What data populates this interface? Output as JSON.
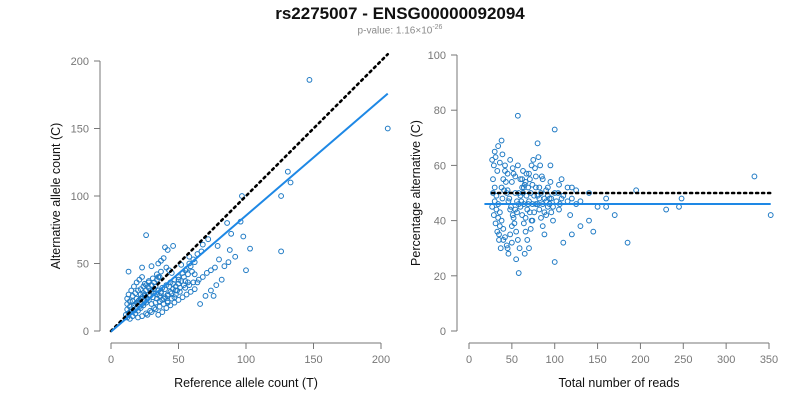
{
  "title": "rs2275007 - ENSG00000092094",
  "subtitle": {
    "prefix": "p-value: 1.16×10",
    "exponent": "-26"
  },
  "colors": {
    "points": "#1f7ac4",
    "fit_line": "#1e88e5",
    "reference_line": "#000000",
    "axis": "#777777"
  },
  "chart_data": [
    {
      "type": "scatter",
      "title": "",
      "xlabel": "Reference allele count (T)",
      "ylabel": "Alternative allele count (C)",
      "xlim": [
        0,
        200
      ],
      "ylim": [
        0,
        200
      ],
      "xticks": [
        0,
        50,
        100,
        150,
        200
      ],
      "yticks": [
        0,
        50,
        100,
        150,
        200
      ],
      "grid": false,
      "reference_line": {
        "style": "dotted",
        "slope": 1,
        "intercept": 0,
        "x": [
          0,
          205
        ]
      },
      "fit_line": {
        "style": "solid",
        "slope": 0.86,
        "intercept": -0.5,
        "x": [
          0,
          205
        ]
      },
      "points": [
        [
          147,
          186
        ],
        [
          205,
          150
        ],
        [
          131,
          118
        ],
        [
          133,
          110
        ],
        [
          97,
          100
        ],
        [
          126,
          100
        ],
        [
          126,
          59
        ],
        [
          103,
          61
        ],
        [
          87,
          51
        ],
        [
          98,
          70
        ],
        [
          89,
          72
        ],
        [
          86,
          80
        ],
        [
          96,
          81
        ],
        [
          76,
          26
        ],
        [
          79,
          63
        ],
        [
          68,
          64
        ],
        [
          72,
          68
        ],
        [
          46,
          63
        ],
        [
          40,
          62
        ],
        [
          42,
          60
        ],
        [
          26,
          71
        ],
        [
          13,
          44
        ],
        [
          23,
          47
        ],
        [
          30,
          48
        ],
        [
          35,
          40
        ],
        [
          45,
          43
        ],
        [
          52,
          49
        ],
        [
          58,
          50
        ],
        [
          62,
          42
        ],
        [
          64,
          36
        ],
        [
          55,
          37
        ],
        [
          49,
          30
        ],
        [
          47,
          25
        ],
        [
          42,
          22
        ],
        [
          37,
          28
        ],
        [
          33,
          33
        ],
        [
          29,
          30
        ],
        [
          25,
          26
        ],
        [
          22,
          27
        ],
        [
          19,
          24
        ],
        [
          16,
          22
        ],
        [
          14,
          18
        ],
        [
          12,
          16
        ],
        [
          11,
          12
        ],
        [
          12,
          10
        ],
        [
          14,
          9
        ],
        [
          16,
          11
        ],
        [
          18,
          13
        ],
        [
          20,
          15
        ],
        [
          22,
          17
        ],
        [
          24,
          19
        ],
        [
          26,
          21
        ],
        [
          28,
          23
        ],
        [
          31,
          25
        ],
        [
          34,
          27
        ],
        [
          37,
          29
        ],
        [
          40,
          31
        ],
        [
          43,
          33
        ],
        [
          46,
          35
        ],
        [
          50,
          38
        ],
        [
          54,
          40
        ],
        [
          57,
          42
        ],
        [
          60,
          44
        ],
        [
          27,
          12
        ],
        [
          30,
          14
        ],
        [
          33,
          16
        ],
        [
          36,
          18
        ],
        [
          39,
          20
        ],
        [
          42,
          21
        ],
        [
          45,
          24
        ],
        [
          48,
          27
        ],
        [
          51,
          29
        ],
        [
          55,
          32
        ],
        [
          58,
          34
        ],
        [
          61,
          36
        ],
        [
          65,
          38
        ],
        [
          68,
          40
        ],
        [
          71,
          43
        ],
        [
          74,
          45
        ],
        [
          77,
          47
        ],
        [
          15,
          30
        ],
        [
          17,
          33
        ],
        [
          19,
          36
        ],
        [
          21,
          38
        ],
        [
          23,
          40
        ],
        [
          25,
          35
        ],
        [
          28,
          37
        ],
        [
          31,
          39
        ],
        [
          34,
          42
        ],
        [
          37,
          44
        ],
        [
          13,
          13
        ],
        [
          15,
          14
        ],
        [
          17,
          15
        ],
        [
          19,
          17
        ],
        [
          21,
          18
        ],
        [
          23,
          20
        ],
        [
          25,
          22
        ],
        [
          27,
          24
        ],
        [
          29,
          26
        ],
        [
          32,
          28
        ],
        [
          35,
          30
        ],
        [
          38,
          32
        ],
        [
          41,
          34
        ],
        [
          44,
          36
        ],
        [
          47,
          38
        ],
        [
          50,
          40
        ],
        [
          53,
          43
        ],
        [
          56,
          46
        ],
        [
          59,
          48
        ],
        [
          62,
          51
        ],
        [
          14,
          22
        ],
        [
          16,
          26
        ],
        [
          18,
          28
        ],
        [
          20,
          30
        ],
        [
          22,
          31
        ],
        [
          24,
          33
        ],
        [
          26,
          34
        ],
        [
          28,
          36
        ],
        [
          30,
          29
        ],
        [
          32,
          31
        ],
        [
          34,
          24
        ],
        [
          36,
          26
        ],
        [
          38,
          23
        ],
        [
          40,
          25
        ],
        [
          42,
          27
        ],
        [
          44,
          29
        ],
        [
          46,
          31
        ],
        [
          48,
          33
        ],
        [
          50,
          35
        ],
        [
          52,
          37
        ],
        [
          35,
          12
        ],
        [
          38,
          14
        ],
        [
          41,
          17
        ],
        [
          44,
          19
        ],
        [
          47,
          21
        ],
        [
          50,
          23
        ],
        [
          53,
          25
        ],
        [
          56,
          27
        ],
        [
          59,
          29
        ],
        [
          62,
          31
        ],
        [
          20,
          10
        ],
        [
          23,
          11
        ],
        [
          26,
          13
        ],
        [
          29,
          15
        ],
        [
          32,
          17
        ],
        [
          66,
          20
        ],
        [
          70,
          26
        ],
        [
          74,
          30
        ],
        [
          78,
          34
        ],
        [
          82,
          38
        ],
        [
          18,
          20
        ],
        [
          20,
          22
        ],
        [
          22,
          24
        ],
        [
          24,
          28
        ],
        [
          26,
          30
        ],
        [
          28,
          32
        ],
        [
          30,
          34
        ],
        [
          32,
          36
        ],
        [
          34,
          38
        ],
        [
          36,
          40
        ],
        [
          12,
          20
        ],
        [
          12,
          24
        ],
        [
          13,
          27
        ],
        [
          14,
          14
        ],
        [
          15,
          16
        ],
        [
          17,
          19
        ],
        [
          19,
          21
        ],
        [
          21,
          23
        ],
        [
          23,
          25
        ],
        [
          25,
          27
        ],
        [
          55,
          45
        ],
        [
          58,
          55
        ],
        [
          61,
          53
        ],
        [
          64,
          57
        ],
        [
          67,
          59
        ],
        [
          35,
          50
        ],
        [
          37,
          52
        ],
        [
          39,
          54
        ],
        [
          41,
          47
        ],
        [
          43,
          45
        ],
        [
          100,
          45
        ],
        [
          88,
          60
        ],
        [
          92,
          55
        ],
        [
          84,
          48
        ],
        [
          80,
          53
        ],
        [
          30,
          20
        ],
        [
          33,
          21
        ],
        [
          36,
          22
        ],
        [
          39,
          24
        ],
        [
          42,
          26
        ],
        [
          45,
          28
        ],
        [
          48,
          30
        ],
        [
          51,
          32
        ],
        [
          54,
          34
        ],
        [
          57,
          36
        ]
      ]
    },
    {
      "type": "scatter",
      "title": "",
      "xlabel": "Total number of reads",
      "ylabel": "Percentage alternative (C)",
      "xlim": [
        0,
        350
      ],
      "ylim": [
        0,
        100
      ],
      "xticks": [
        0,
        50,
        100,
        150,
        200,
        250,
        300,
        350
      ],
      "yticks": [
        0,
        20,
        40,
        60,
        80,
        100
      ],
      "grid": false,
      "reference_line": {
        "style": "dotted",
        "y": 50,
        "x": [
          27,
          352
        ]
      },
      "fit_line": {
        "style": "solid",
        "y": 46,
        "x": [
          18,
          352
        ]
      },
      "points": [
        [
          57,
          78
        ],
        [
          100,
          73
        ],
        [
          80,
          68
        ],
        [
          38,
          69
        ],
        [
          34,
          67
        ],
        [
          30,
          65
        ],
        [
          27,
          62
        ],
        [
          29,
          60
        ],
        [
          31,
          63
        ],
        [
          33,
          58
        ],
        [
          36,
          61
        ],
        [
          39,
          64
        ],
        [
          42,
          60
        ],
        [
          45,
          57
        ],
        [
          48,
          62
        ],
        [
          51,
          59
        ],
        [
          54,
          56
        ],
        [
          57,
          60
        ],
        [
          60,
          55
        ],
        [
          63,
          58
        ],
        [
          66,
          54
        ],
        [
          70,
          57
        ],
        [
          74,
          53
        ],
        [
          78,
          56
        ],
        [
          82,
          52
        ],
        [
          86,
          55
        ],
        [
          90,
          51
        ],
        [
          95,
          54
        ],
        [
          100,
          50
        ],
        [
          105,
          53
        ],
        [
          110,
          49
        ],
        [
          115,
          52
        ],
        [
          120,
          48
        ],
        [
          125,
          51
        ],
        [
          130,
          47
        ],
        [
          140,
          50
        ],
        [
          150,
          45
        ],
        [
          160,
          48
        ],
        [
          170,
          42
        ],
        [
          28,
          55
        ],
        [
          30,
          52
        ],
        [
          32,
          49
        ],
        [
          34,
          46
        ],
        [
          36,
          43
        ],
        [
          38,
          40
        ],
        [
          40,
          37
        ],
        [
          42,
          34
        ],
        [
          44,
          31
        ],
        [
          46,
          28
        ],
        [
          48,
          35
        ],
        [
          50,
          38
        ],
        [
          52,
          41
        ],
        [
          54,
          44
        ],
        [
          56,
          47
        ],
        [
          58,
          50
        ],
        [
          60,
          45
        ],
        [
          62,
          42
        ],
        [
          64,
          39
        ],
        [
          66,
          36
        ],
        [
          68,
          33
        ],
        [
          70,
          30
        ],
        [
          72,
          37
        ],
        [
          74,
          40
        ],
        [
          76,
          43
        ],
        [
          78,
          46
        ],
        [
          80,
          49
        ],
        [
          82,
          44
        ],
        [
          84,
          41
        ],
        [
          86,
          38
        ],
        [
          88,
          35
        ],
        [
          90,
          42
        ],
        [
          92,
          45
        ],
        [
          94,
          48
        ],
        [
          96,
          43
        ],
        [
          98,
          40
        ],
        [
          27,
          45
        ],
        [
          29,
          42
        ],
        [
          31,
          39
        ],
        [
          33,
          36
        ],
        [
          35,
          33
        ],
        [
          37,
          30
        ],
        [
          39,
          48
        ],
        [
          41,
          51
        ],
        [
          43,
          54
        ],
        [
          45,
          51
        ],
        [
          47,
          48
        ],
        [
          49,
          45
        ],
        [
          51,
          42
        ],
        [
          53,
          39
        ],
        [
          55,
          36
        ],
        [
          57,
          33
        ],
        [
          59,
          30
        ],
        [
          61,
          47
        ],
        [
          63,
          50
        ],
        [
          65,
          53
        ],
        [
          67,
          49
        ],
        [
          69,
          46
        ],
        [
          71,
          43
        ],
        [
          73,
          40
        ],
        [
          58,
          21
        ],
        [
          55,
          26
        ],
        [
          65,
          28
        ],
        [
          45,
          30
        ],
        [
          50,
          32
        ],
        [
          40,
          33
        ],
        [
          35,
          35
        ],
        [
          100,
          25
        ],
        [
          110,
          32
        ],
        [
          120,
          35
        ],
        [
          130,
          38
        ],
        [
          140,
          40
        ],
        [
          145,
          36
        ],
        [
          160,
          45
        ],
        [
          185,
          32
        ],
        [
          195,
          51
        ],
        [
          230,
          44
        ],
        [
          245,
          45
        ],
        [
          248,
          48
        ],
        [
          333,
          56
        ],
        [
          352,
          42
        ],
        [
          120,
          52
        ],
        [
          125,
          46
        ],
        [
          105,
          44
        ],
        [
          108,
          55
        ],
        [
          115,
          47
        ],
        [
          118,
          42
        ],
        [
          95,
          60
        ],
        [
          92,
          52
        ],
        [
          88,
          48
        ],
        [
          85,
          56
        ],
        [
          83,
          60
        ],
        [
          81,
          63
        ],
        [
          77,
          59
        ],
        [
          75,
          62
        ],
        [
          73,
          60
        ],
        [
          71,
          55
        ],
        [
          69,
          52
        ],
        [
          67,
          57
        ],
        [
          64,
          52
        ],
        [
          62,
          55
        ],
        [
          28,
          50
        ],
        [
          30,
          47
        ],
        [
          32,
          44
        ],
        [
          34,
          41
        ],
        [
          36,
          38
        ],
        [
          38,
          52
        ],
        [
          40,
          55
        ],
        [
          42,
          58
        ],
        [
          44,
          50
        ],
        [
          46,
          47
        ],
        [
          48,
          44
        ],
        [
          50,
          54
        ],
        [
          52,
          57
        ],
        [
          54,
          50
        ],
        [
          56,
          43
        ],
        [
          58,
          46
        ],
        [
          60,
          49
        ],
        [
          62,
          52
        ],
        [
          64,
          46
        ],
        [
          66,
          41
        ],
        [
          68,
          44
        ],
        [
          70,
          47
        ],
        [
          72,
          50
        ],
        [
          74,
          46
        ],
        [
          76,
          49
        ],
        [
          78,
          52
        ],
        [
          80,
          46
        ],
        [
          82,
          48
        ],
        [
          84,
          50
        ],
        [
          86,
          46
        ],
        [
          88,
          43
        ],
        [
          90,
          47
        ],
        [
          92,
          49
        ],
        [
          94,
          46
        ],
        [
          96,
          48
        ],
        [
          98,
          45
        ],
        [
          102,
          47
        ],
        [
          104,
          50
        ],
        [
          106,
          46
        ],
        [
          108,
          48
        ]
      ]
    }
  ]
}
